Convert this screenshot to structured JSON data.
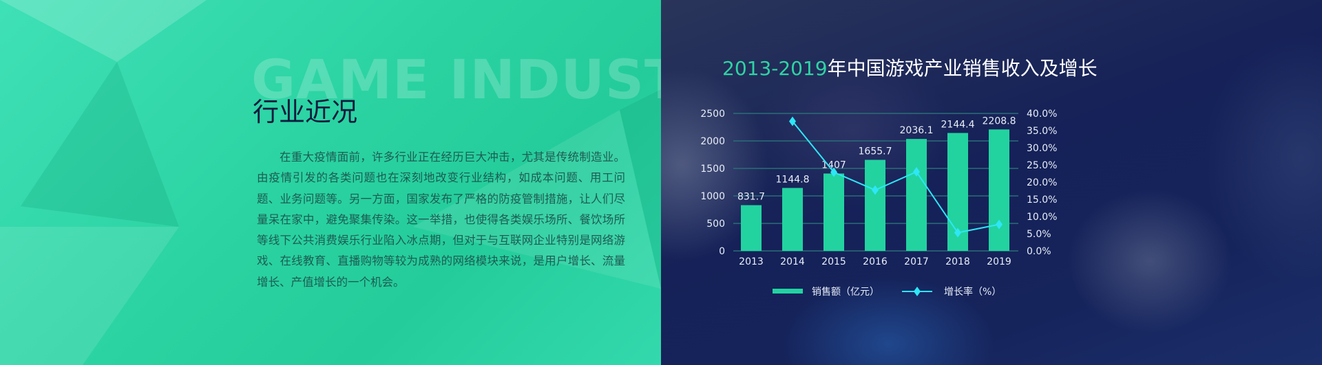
{
  "left": {
    "background_title": "GAME INDUSTRY",
    "heading": "行业近况",
    "paragraph": "在重大疫情面前，许多行业正在经历巨大冲击，尤其是传统制造业。由疫情引发的各类问题也在深刻地改变行业结构，如成本问题、用工问题、业务问题等。另一方面，国家发布了严格的防疫管制措施，让人们尽量呆在家中，避免聚集传染。这一举措，也使得各类娱乐场所、餐饮场所等线下公共消费娱乐行业陷入冰点期，但对于与互联网企业特别是网络游戏、在线教育、直播购物等较为成熟的网络模块来说，是用户增长、流量增长、产值增长的一个机会。",
    "colors": {
      "panel": "#2bd3a2",
      "heading": "#0e1b3d",
      "text": "#1d5c52"
    }
  },
  "chart_data": {
    "type": "bar",
    "title_years": "2013-2019",
    "title_rest": "年中国游戏产业销售收入及增长",
    "categories": [
      "2013",
      "2014",
      "2015",
      "2016",
      "2017",
      "2018",
      "2019"
    ],
    "series": [
      {
        "name": "销售额（亿元）",
        "type": "bar",
        "axis": "left",
        "color": "#22d3a0",
        "values": [
          831.7,
          1144.8,
          1407,
          1655.7,
          2036.1,
          2144.4,
          2208.8
        ],
        "labels": [
          "831.7",
          "1144.8",
          "1407",
          "1655.7",
          "2036.1",
          "2144.4",
          "2208.8"
        ]
      },
      {
        "name": "增长率（%）",
        "type": "line",
        "axis": "right",
        "color": "#2ee6f5",
        "marker": "diamond",
        "values": [
          null,
          37.7,
          22.9,
          17.7,
          23.0,
          5.3,
          7.7
        ]
      }
    ],
    "y_left": {
      "ylim": [
        0,
        2500
      ],
      "ticks": [
        "0",
        "500",
        "1000",
        "1500",
        "2000",
        "2500"
      ]
    },
    "y_right": {
      "ylim": [
        0,
        40
      ],
      "ticks": [
        "0.0%",
        "5.0%",
        "10.0%",
        "15.0%",
        "20.0%",
        "25.0%",
        "30.0%",
        "35.0%",
        "40.0%"
      ]
    },
    "grid": true,
    "legend": "bottom"
  }
}
